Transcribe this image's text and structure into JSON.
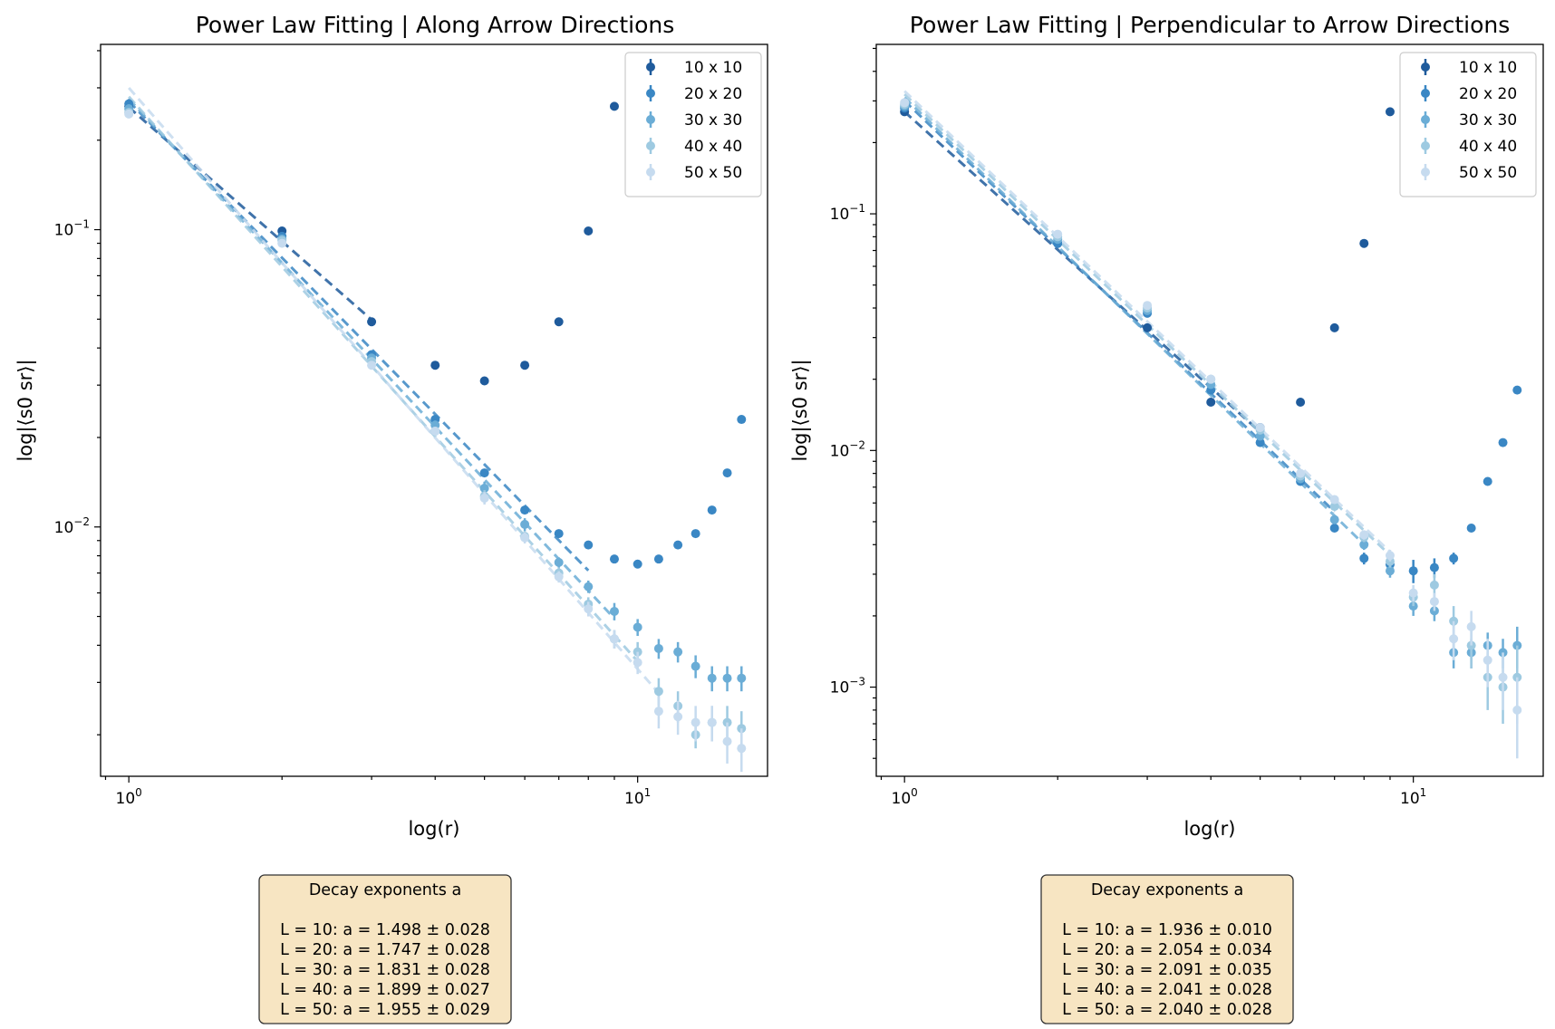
{
  "chart_data": [
    {
      "type": "scatter",
      "title": "Power Law Fitting | Along Arrow Directions",
      "xlabel": "log(r)",
      "ylabel": "log|⟨s0 sr⟩|",
      "xscale": "log",
      "yscale": "log",
      "xlim": [
        0.88,
        18
      ],
      "ylim": [
        0.00145,
        0.42
      ],
      "x_tick_labels": [
        "10^0",
        "10^1"
      ],
      "y_tick_labels": [
        "10^-2",
        "10^-1"
      ],
      "legend_position": "top-right",
      "fit_style": "dashed",
      "x": [
        1,
        2,
        3,
        4,
        5,
        6,
        7,
        8,
        9,
        10,
        11,
        12,
        13,
        14,
        15,
        16
      ],
      "series": [
        {
          "name": "10 x 10",
          "color": "#1f5b9c",
          "values": [
            0.26,
            0.099,
            0.049,
            0.035,
            0.031,
            0.035,
            0.049,
            0.099,
            0.26
          ],
          "errors": [
            0.012,
            0,
            0,
            0,
            0,
            0,
            0,
            0,
            0
          ],
          "fit": {
            "x_range": [
              1,
              3
            ],
            "intercept": 0.258,
            "exponent": 1.498
          }
        },
        {
          "name": "20 x 20",
          "color": "#3a87c4",
          "values": [
            0.265,
            0.095,
            0.038,
            0.023,
            0.0152,
            0.0114,
            0.0095,
            0.0087,
            0.0078,
            0.0075,
            0.0078,
            0.0087,
            0.0095,
            0.0114,
            0.0152,
            0.023
          ],
          "errors": [
            0.01,
            0,
            0,
            0,
            0,
            0,
            0,
            0,
            0,
            0,
            0,
            0,
            0,
            0,
            0,
            0
          ],
          "fit": {
            "x_range": [
              1,
              8
            ],
            "intercept": 0.27,
            "exponent": 1.747
          }
        },
        {
          "name": "30 x 30",
          "color": "#6badd6",
          "values": [
            0.255,
            0.093,
            0.037,
            0.022,
            0.0135,
            0.0102,
            0.0076,
            0.0063,
            0.0052,
            0.0046,
            0.0039,
            0.0038,
            0.0034,
            0.0031,
            0.0031,
            0.0031
          ],
          "errors": [
            0.009,
            0,
            0,
            0.0008,
            0.0007,
            0.0005,
            0.0003,
            0.0003,
            0.00035,
            0.0003,
            0.0003,
            0.0003,
            0.0003,
            0.0003,
            0.0003,
            0.0003
          ],
          "fit": {
            "x_range": [
              1,
              9
            ],
            "intercept": 0.275,
            "exponent": 1.831
          }
        },
        {
          "name": "40 x 40",
          "color": "#9ecae1",
          "values": [
            0.248,
            0.092,
            0.036,
            0.021,
            0.0127,
            0.0093,
            0.007,
            0.0055,
            0.0042,
            0.0038,
            0.0028,
            0.0025,
            0.002,
            0.0022,
            0.0022,
            0.0021
          ],
          "errors": [
            0.008,
            0,
            0,
            0,
            0.0006,
            0.0004,
            0.0003,
            0.0003,
            0.0003,
            0.0003,
            0.0003,
            0.0003,
            0.0002,
            0.0003,
            0.0003,
            0.0003
          ],
          "fit": {
            "x_range": [
              1,
              10
            ],
            "intercept": 0.28,
            "exponent": 1.899
          }
        },
        {
          "name": "50 x 50",
          "color": "#c6dbef",
          "values": [
            0.245,
            0.09,
            0.035,
            0.021,
            0.0125,
            0.0092,
            0.0068,
            0.0053,
            0.0042,
            0.0035,
            0.0024,
            0.0023,
            0.0022,
            0.0022,
            0.0019,
            0.0018
          ],
          "errors": [
            0.008,
            0,
            0,
            0,
            0.0006,
            0.0004,
            0.0003,
            0.0003,
            0.0003,
            0.0003,
            0.0003,
            0.0003,
            0.0003,
            0.0003,
            0.0003,
            0.0003
          ],
          "fit": {
            "x_range": [
              1,
              11
            ],
            "intercept": 0.3,
            "exponent": 1.955
          }
        }
      ],
      "annotation": {
        "title": "Decay exponents a",
        "lines": [
          "L = 10: a = 1.498 ± 0.028",
          "L = 20: a = 1.747 ± 0.028",
          "L = 30: a = 1.831 ± 0.028",
          "L = 40: a = 1.899 ± 0.027",
          "L = 50: a = 1.955 ± 0.029"
        ]
      }
    },
    {
      "type": "scatter",
      "title": "Power Law Fitting | Perpendicular to Arrow Directions",
      "xlabel": "log(r)",
      "ylabel": "log|⟨s0 sr⟩|",
      "xscale": "log",
      "yscale": "log",
      "xlim": [
        0.88,
        18
      ],
      "ylim": [
        0.00042,
        0.52
      ],
      "x_tick_labels": [
        "10^0",
        "10^1"
      ],
      "y_tick_labels": [
        "10^-3",
        "10^-2",
        "10^-1"
      ],
      "legend_position": "top-right",
      "fit_style": "dashed",
      "x": [
        1,
        2,
        3,
        4,
        5,
        6,
        7,
        8,
        9,
        10,
        11,
        12,
        13,
        14,
        15,
        16
      ],
      "series": [
        {
          "name": "10 x 10",
          "color": "#1f5b9c",
          "values": [
            0.27,
            0.075,
            0.033,
            0.016,
            0.0125,
            0.016,
            0.033,
            0.075,
            0.27
          ],
          "errors": [
            0.01,
            0,
            0,
            0,
            0,
            0,
            0,
            0,
            0
          ],
          "fit": {
            "x_range": [
              1,
              5
            ],
            "intercept": 0.27,
            "exponent": 1.936
          }
        },
        {
          "name": "20 x 20",
          "color": "#3a87c4",
          "values": [
            0.28,
            0.075,
            0.038,
            0.018,
            0.0108,
            0.0074,
            0.0047,
            0.0035,
            0.0033,
            0.0031,
            0.0032,
            0.0035,
            0.0047,
            0.0074,
            0.0108,
            0.018
          ],
          "errors": [
            0.01,
            0,
            0,
            0,
            0,
            0,
            0,
            0.0002,
            0.00025,
            0.00035,
            0.0003,
            0.0002,
            0,
            0,
            0,
            0
          ],
          "fit": {
            "x_range": [
              1,
              7
            ],
            "intercept": 0.3,
            "exponent": 2.054
          }
        },
        {
          "name": "30 x 30",
          "color": "#6badd6",
          "values": [
            0.285,
            0.078,
            0.039,
            0.019,
            0.0115,
            0.0076,
            0.0051,
            0.004,
            0.0031,
            0.0022,
            0.0021,
            0.0014,
            0.0014,
            0.0015,
            0.0014,
            0.0015
          ],
          "errors": [
            0.01,
            0,
            0,
            0,
            0,
            0,
            0,
            0.0002,
            0.0002,
            0.0002,
            0.0002,
            0.0002,
            0.0002,
            0.0002,
            0.0002,
            0.0003
          ],
          "fit": {
            "x_range": [
              1,
              8
            ],
            "intercept": 0.31,
            "exponent": 2.091
          }
        },
        {
          "name": "40 x 40",
          "color": "#9ecae1",
          "values": [
            0.29,
            0.08,
            0.04,
            0.02,
            0.0122,
            0.0078,
            0.0058,
            0.0043,
            0.0034,
            0.0024,
            0.0027,
            0.0019,
            0.0015,
            0.0011,
            0.001,
            0.0011
          ],
          "errors": [
            0.01,
            0,
            0,
            0,
            0,
            0,
            0,
            0.0002,
            0.0002,
            0.0002,
            0.0003,
            0.0003,
            0.0003,
            0.0003,
            0.0003,
            0.0004
          ],
          "fit": {
            "x_range": [
              1,
              9
            ],
            "intercept": 0.32,
            "exponent": 2.041
          }
        },
        {
          "name": "50 x 50",
          "color": "#c6dbef",
          "values": [
            0.295,
            0.082,
            0.041,
            0.02,
            0.0125,
            0.008,
            0.0062,
            0.0044,
            0.0036,
            0.0025,
            0.0023,
            0.0016,
            0.0018,
            0.0013,
            0.0011,
            0.0008
          ],
          "errors": [
            0.01,
            0,
            0,
            0,
            0,
            0,
            0,
            0.0002,
            0.0002,
            0.0002,
            0.0002,
            0.0003,
            0.0003,
            0.0003,
            0.0003,
            0.0003
          ],
          "fit": {
            "x_range": [
              1,
              9
            ],
            "intercept": 0.33,
            "exponent": 2.04
          }
        }
      ],
      "annotation": {
        "title": "Decay exponents a",
        "lines": [
          "L = 10: a = 1.936 ± 0.010",
          "L = 20: a = 2.054 ± 0.034",
          "L = 30: a = 2.091 ± 0.035",
          "L = 40: a = 2.041 ± 0.028",
          "L = 50: a = 2.040 ± 0.028"
        ]
      }
    }
  ]
}
